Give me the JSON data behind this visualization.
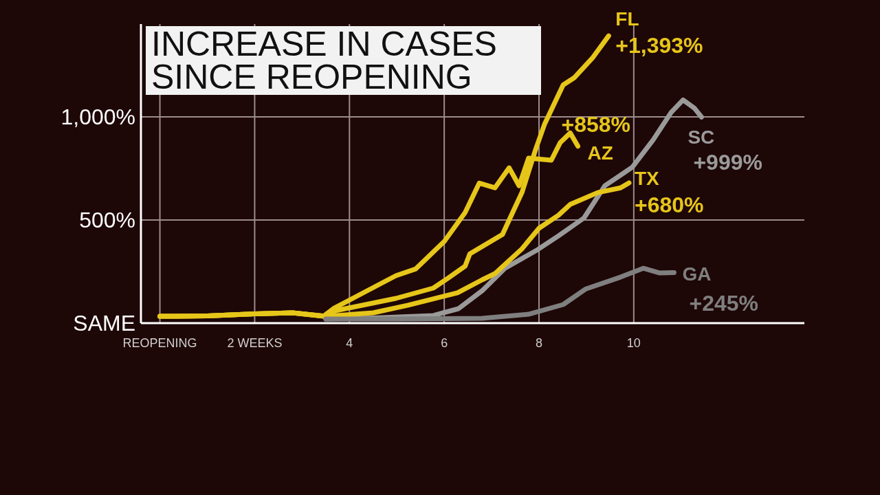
{
  "chart_data": {
    "type": "line",
    "title": "INCREASE IN CASES SINCE REOPENING",
    "series": [
      {
        "name": "FL",
        "color": "#e6c619",
        "x": [
          0,
          1,
          2,
          2.8,
          3.5,
          3.7,
          4.98,
          5.77,
          6.07,
          6.44,
          6.54,
          7.23,
          7.33,
          7.64,
          7.93,
          8.12,
          8.51,
          8.74,
          9.14,
          9.47
        ],
        "values": [
          33,
          35,
          45,
          50,
          33,
          60,
          120,
          170,
          216,
          276,
          336,
          430,
          480,
          633,
          843,
          966,
          1155,
          1189,
          1289,
          1393
        ]
      },
      {
        "name": "AZ",
        "color": "#e6c619",
        "x": [
          0,
          1,
          2,
          2.8,
          3.45,
          3.68,
          4.98,
          5.4,
          6.0,
          6.44,
          6.74,
          7.07,
          7.37,
          7.58,
          7.78,
          8.26,
          8.45,
          8.66,
          8.82
        ],
        "values": [
          33,
          35,
          45,
          50,
          33,
          73,
          230,
          263,
          396,
          536,
          679,
          656,
          753,
          666,
          800,
          790,
          876,
          922,
          858
        ]
      },
      {
        "name": "SC",
        "color": "#9a9a9a",
        "x": [
          3.5,
          4.5,
          5.77,
          6.3,
          6.8,
          7.28,
          7.97,
          8.41,
          8.95,
          9.39,
          9.97,
          10.41,
          10.79,
          11.04,
          11.28,
          11.43
        ],
        "values": [
          20,
          25,
          37,
          70,
          157,
          266,
          356,
          423,
          510,
          666,
          756,
          889,
          1022,
          1082,
          1042,
          999
        ]
      },
      {
        "name": "TX",
        "color": "#e6c619",
        "x": [
          0,
          1,
          2,
          2.8,
          3.5,
          4.5,
          5.24,
          6.28,
          6.8,
          7.07,
          7.64,
          8.0,
          8.41,
          8.66,
          9.24,
          9.72,
          9.9
        ],
        "values": [
          33,
          35,
          45,
          50,
          33,
          50,
          87,
          147,
          210,
          240,
          360,
          460,
          523,
          576,
          633,
          656,
          680
        ]
      },
      {
        "name": "GA",
        "color": "#7f7f7f",
        "x": [
          3.5,
          5,
          6.8,
          7.78,
          8.51,
          8.99,
          9.72,
          10.2,
          10.55,
          10.85
        ],
        "values": [
          20,
          20,
          23,
          43,
          90,
          166,
          223,
          266,
          243,
          245
        ]
      }
    ],
    "annotations": [
      {
        "text": "+1,393%",
        "x": 9.47,
        "y": 1393
      },
      {
        "text": "+858%",
        "x": 8.82,
        "y": 858
      },
      {
        "text": "+999%",
        "x": 11.43,
        "y": 999
      },
      {
        "text": "+680%",
        "x": 9.9,
        "y": 680
      },
      {
        "text": "+245%",
        "x": 10.85,
        "y": 245
      }
    ],
    "xlim": [
      -0.4,
      13.6
    ],
    "xticks": [
      {
        "value": 0,
        "label": "REOPENING"
      },
      {
        "value": 2,
        "label": "2 WEEKS"
      },
      4,
      6,
      8,
      10
    ],
    "ylim": [
      0,
      1450
    ],
    "yticks": [
      {
        "value": 0,
        "label": "SAME"
      },
      {
        "value": 500,
        "label": "500%"
      },
      {
        "value": 1000,
        "label": "1,000%"
      }
    ],
    "grid": true
  }
}
